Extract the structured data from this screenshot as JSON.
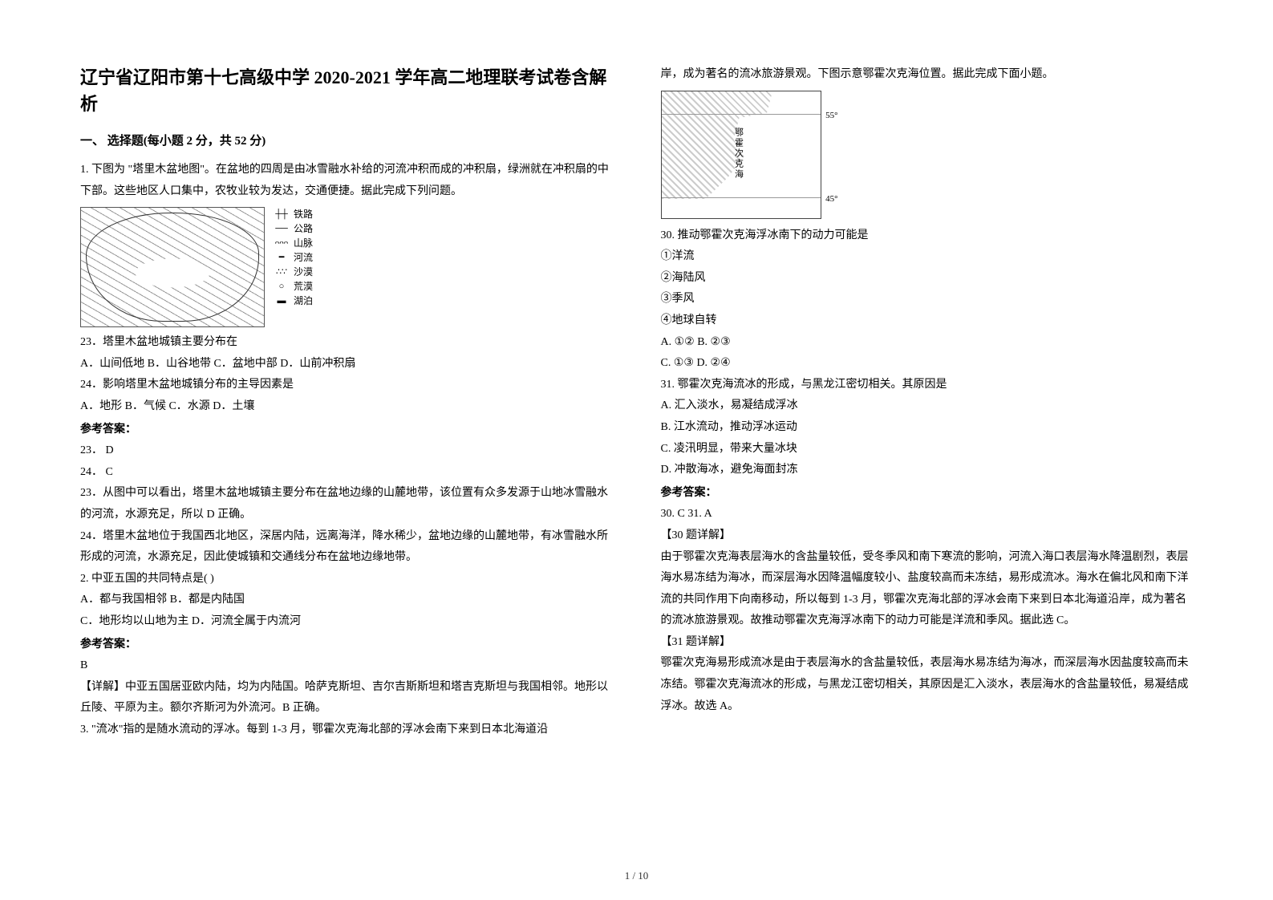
{
  "doc": {
    "title": "辽宁省辽阳市第十七高级中学 2020-2021 学年高二地理联考试卷含解析",
    "section1": "一、 选择题(每小题 2 分，共 52 分)",
    "page_footer": "1 / 10"
  },
  "left": {
    "q1_intro": "1. 下图为  \"塔里木盆地图\"。在盆地的四周是由冰雪融水补给的河流冲积而成的冲积扇，绿洲就在冲积扇的中下部。这些地区人口集中，农牧业较为发达，交通便捷。据此完成下列问题。",
    "legend": {
      "l1": "铁路",
      "l2": "公路",
      "l3": "山脉",
      "l4": "河流",
      "l5": "沙漠",
      "l6": "荒漠",
      "l7": "湖泊"
    },
    "q23_stem": "23．塔里木盆地城镇主要分布在",
    "q23_opts": "A．山间低地            B．山谷地带            C．盆地中部            D．山前冲积扇",
    "q24_stem": "24．影响塔里木盆地城镇分布的主导因素是",
    "q24_opts": "A．地形          B．气候          C．水源          D．土壤",
    "ans_label1": "参考答案：",
    "ans_23": "23．          D",
    "ans_24": "24．          C",
    "expl_23": "23．从图中可以看出，塔里木盆地城镇主要分布在盆地边缘的山麓地带，该位置有众多发源于山地冰雪融水的河流，水源充足，所以 D 正确。",
    "expl_24": "24．塔里木盆地位于我国西北地区，深居内陆，远离海洋，降水稀少，盆地边缘的山麓地带，有冰雪融水所形成的河流，水源充足，因此使城镇和交通线分布在盆地边缘地带。",
    "q2_stem": "2. 中亚五国的共同特点是(     )",
    "q2_optA": "A．都与我国相邻      B．都是内陆国",
    "q2_optC": "C．地形均以山地为主 D．河流全属于内流河",
    "ans_label2": "参考答案：",
    "ans_2": "B",
    "expl_2a": "【详解】中亚五国居亚欧内陆，均为内陆国。哈萨克斯坦、吉尔吉斯斯坦和塔吉克斯坦与我国相邻。地形以丘陵、平原为主。额尔齐斯河为外流河。B 正确。",
    "q3_intro": "3. \"流冰\"指的是随水流动的浮冰。每到 1-3 月，鄂霍次克海北部的浮冰会南下来到日本北海道沿"
  },
  "right": {
    "q3_cont": "岸，成为著名的流冰旅游景观。下图示意鄂霍次克海位置。据此完成下面小题。",
    "map2_label": "鄂霍次克海",
    "map2_lat_t": "55°",
    "map2_lat_b": "45°",
    "q30_stem": "30.  推动鄂霍次克海浮冰南下的动力可能是",
    "q30_1": "①洋流",
    "q30_2": "②海陆风",
    "q30_3": "③季风",
    "q30_4": "④地球自转",
    "q30_optsA": "A.  ①②        B.  ②③",
    "q30_optsC": "C.  ①③        D.  ②④",
    "q31_stem": "31.  鄂霍次克海流冰的形成，与黑龙江密切相关。其原因是",
    "q31_A": "A.  汇入淡水，易凝结成浮冰",
    "q31_B": "B.  江水流动，推动浮冰运动",
    "q31_C": "C.  凌汛明显，带来大量冰块",
    "q31_D": "D.  冲散海冰，避免海面封冻",
    "ans_label3": "参考答案：",
    "ans_30_31": "30. C          31. A",
    "expl30_h": "【30 题详解】",
    "expl30": "由于鄂霍次克海表层海水的含盐量较低，受冬季风和南下寒流的影响，河流入海口表层海水降温剧烈，表层海水易冻结为海冰，而深层海水因降温幅度较小、盐度较高而未冻结，易形成流冰。海水在偏北风和南下洋流的共同作用下向南移动，所以每到 1-3 月，鄂霍次克海北部的浮冰会南下来到日本北海道沿岸，成为著名的流冰旅游景观。故推动鄂霍次克海浮冰南下的动力可能是洋流和季风。据此选 C。",
    "expl31_h": "【31 题详解】",
    "expl31": "鄂霍次克海易形成流冰是由于表层海水的含盐量较低，表层海水易冻结为海冰，而深层海水因盐度较高而未冻结。鄂霍次克海流冰的形成，与黑龙江密切相关，其原因是汇入淡水，表层海水的含盐量较低，易凝结成浮冰。故选 A。"
  }
}
